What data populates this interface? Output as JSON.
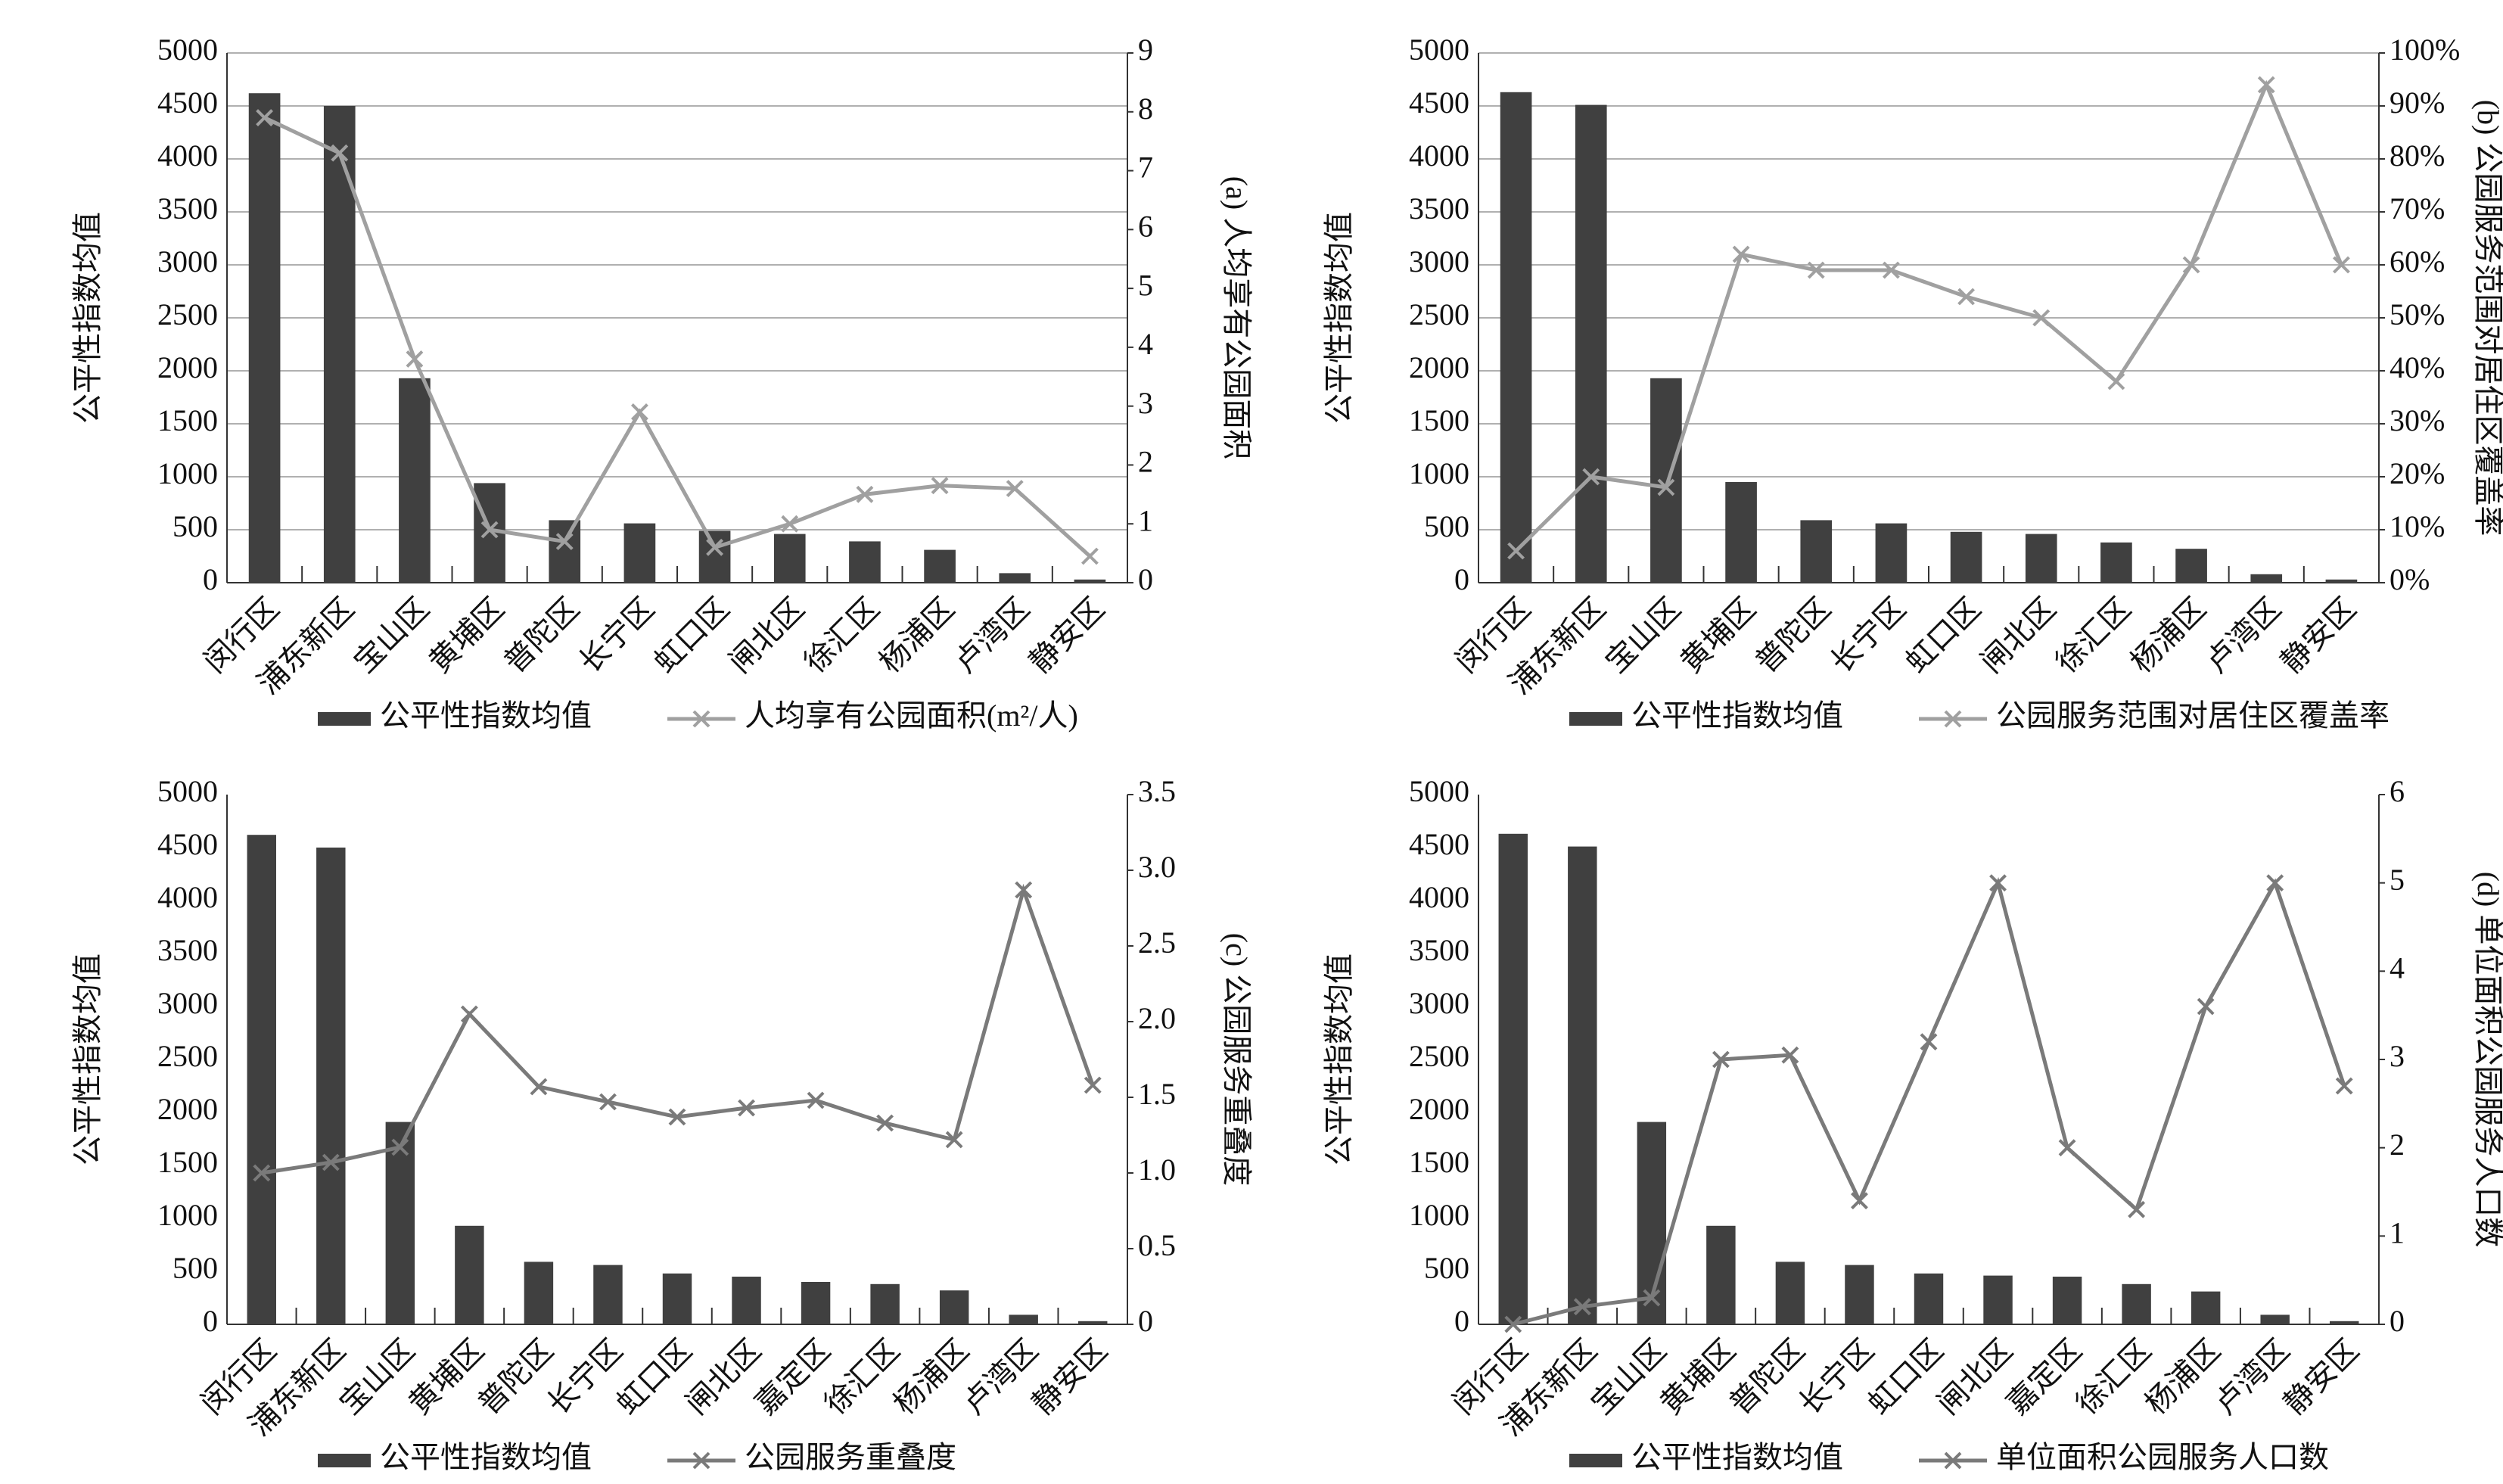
{
  "chart_data": [
    {
      "type": "bar",
      "categories": [
        "闵行区",
        "浦东新区",
        "宝山区",
        "黄埔区",
        "普陀区",
        "长宁区",
        "虹口区",
        "闸北区",
        "徐汇区",
        "杨浦区",
        "卢湾区",
        "静安区"
      ],
      "ylabel": "公平性指数均值",
      "y2label": "(a) 人均享有公园面积",
      "ylim": [
        0,
        5000
      ],
      "yticks": [
        0,
        500,
        1000,
        1500,
        2000,
        2500,
        3000,
        3500,
        4000,
        4500,
        5000
      ],
      "y2lim": [
        0,
        9
      ],
      "y2ticks": [
        0,
        1,
        2,
        3,
        4,
        5,
        6,
        7,
        8,
        9
      ],
      "grid": true,
      "series": [
        {
          "name": "公平性指数均值",
          "type": "bar",
          "color": "#404040",
          "values": [
            4620,
            4500,
            1930,
            940,
            590,
            560,
            490,
            460,
            390,
            310,
            90,
            30
          ]
        },
        {
          "name": "人均享有公园面积(m²/人)",
          "type": "line",
          "axis": "y2",
          "color": "#a0a0a0",
          "values": [
            7.9,
            7.3,
            3.8,
            0.9,
            0.7,
            2.9,
            0.6,
            1.0,
            1.5,
            1.65,
            1.6,
            0.45
          ]
        }
      ]
    },
    {
      "type": "bar",
      "categories": [
        "闵行区",
        "浦东新区",
        "宝山区",
        "黄埔区",
        "普陀区",
        "长宁区",
        "虹口区",
        "闸北区",
        "徐汇区",
        "杨浦区",
        "卢湾区",
        "静安区"
      ],
      "ylabel": "公平性指数均值",
      "y2label": "(b) 公园服务范围对居住区覆盖率",
      "ylim": [
        0,
        5000
      ],
      "yticks": [
        0,
        500,
        1000,
        1500,
        2000,
        2500,
        3000,
        3500,
        4000,
        4500,
        5000
      ],
      "y2lim": [
        0,
        100
      ],
      "y2ticks": [
        {
          "value": 0,
          "label": "0%"
        },
        {
          "value": 10,
          "label": "10%"
        },
        {
          "value": 20,
          "label": "20%"
        },
        {
          "value": 30,
          "label": "30%"
        },
        {
          "value": 40,
          "label": "40%"
        },
        {
          "value": 50,
          "label": "50%"
        },
        {
          "value": 60,
          "label": "60%"
        },
        {
          "value": 70,
          "label": "70%"
        },
        {
          "value": 80,
          "label": "80%"
        },
        {
          "value": 90,
          "label": "90%"
        },
        {
          "value": 100,
          "label": "100%"
        }
      ],
      "grid": true,
      "series": [
        {
          "name": "公平性指数均值",
          "type": "bar",
          "color": "#404040",
          "values": [
            4630,
            4510,
            1930,
            950,
            590,
            560,
            480,
            460,
            380,
            320,
            80,
            30
          ]
        },
        {
          "name": "公园服务范围对居住区覆盖率",
          "type": "line",
          "axis": "y2",
          "color": "#a0a0a0",
          "values": [
            6,
            20,
            18,
            62,
            59,
            59,
            54,
            50,
            38,
            60,
            94,
            60
          ]
        }
      ]
    },
    {
      "type": "bar",
      "categories": [
        "闵行区",
        "浦东新区",
        "宝山区",
        "黄埔区",
        "普陀区",
        "长宁区",
        "虹口区",
        "闸北区",
        "嘉定区",
        "徐汇区",
        "杨浦区",
        "卢湾区",
        "静安区"
      ],
      "ylabel": "公平性指数均值",
      "y2label": "(c) 公园服务重叠度",
      "ylim": [
        0,
        5000
      ],
      "yticks": [
        0,
        500,
        1000,
        1500,
        2000,
        2500,
        3000,
        3500,
        4000,
        4500,
        5000
      ],
      "y2lim": [
        0,
        3.5
      ],
      "y2ticks": [
        0,
        0.5,
        {
          "value": 1,
          "label": "1.0"
        },
        1.5,
        {
          "value": 2,
          "label": "2.0"
        },
        2.5,
        {
          "value": 3,
          "label": "3.0"
        },
        3.5
      ],
      "grid": false,
      "series": [
        {
          "name": "公平性指数均值",
          "type": "bar",
          "color": "#404040",
          "values": [
            4620,
            4500,
            1910,
            930,
            590,
            560,
            480,
            450,
            400,
            380,
            320,
            90,
            30
          ]
        },
        {
          "name": "公园服务重叠度",
          "type": "line",
          "axis": "y2",
          "color": "#7a7a7a",
          "values": [
            1.0,
            1.07,
            1.17,
            2.05,
            1.57,
            1.47,
            1.37,
            1.43,
            1.48,
            1.33,
            1.22,
            2.87,
            1.58
          ]
        }
      ]
    },
    {
      "type": "bar",
      "categories": [
        "闵行区",
        "浦东新区",
        "宝山区",
        "黄埔区",
        "普陀区",
        "长宁区",
        "虹口区",
        "闸北区",
        "嘉定区",
        "徐汇区",
        "杨浦区",
        "卢湾区",
        "静安区"
      ],
      "ylabel": "公平性指数均值",
      "y2label": "(d) 单位面积公园服务人口数",
      "ylim": [
        0,
        5000
      ],
      "yticks": [
        0,
        500,
        1000,
        1500,
        2000,
        2500,
        3000,
        3500,
        4000,
        4500,
        5000
      ],
      "y2lim": [
        0,
        6
      ],
      "y2ticks": [
        0,
        1,
        2,
        3,
        4,
        5,
        6
      ],
      "grid": false,
      "series": [
        {
          "name": "公平性指数均值",
          "type": "bar",
          "color": "#404040",
          "values": [
            4630,
            4510,
            1910,
            930,
            590,
            560,
            480,
            460,
            450,
            380,
            310,
            90,
            30
          ]
        },
        {
          "name": "单位面积公园服务人口数",
          "type": "line",
          "axis": "y2",
          "color": "#7a7a7a",
          "values": [
            0,
            0.2,
            0.3,
            3.0,
            3.05,
            1.4,
            3.2,
            5.0,
            2.0,
            1.3,
            3.6,
            5.0,
            2.7
          ]
        }
      ]
    }
  ]
}
